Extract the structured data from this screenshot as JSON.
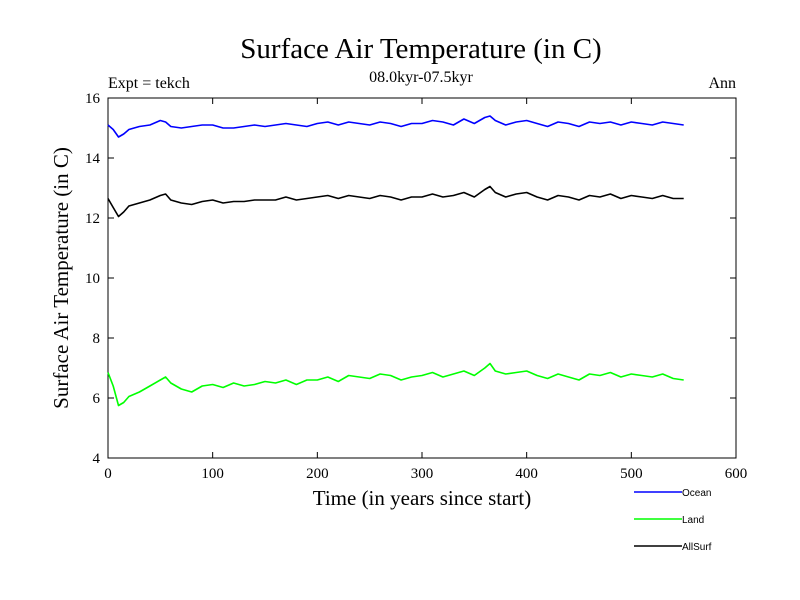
{
  "chart_data": {
    "type": "line",
    "title": "Surface Air Temperature (in C)",
    "subtitle": "08.0kyr-07.5kyr",
    "left_label": "Expt = tekch",
    "right_label": "Ann",
    "xlabel": "Time (in years since start)",
    "ylabel": "Surface Air Temperature (in C)",
    "xlim": [
      0,
      600
    ],
    "ylim": [
      4,
      16
    ],
    "xticks": [
      0,
      100,
      200,
      300,
      400,
      500,
      600
    ],
    "yticks": [
      4,
      6,
      8,
      10,
      12,
      14,
      16
    ],
    "legend_position": "bottom-right, below plot",
    "series": [
      {
        "name": "Ocean",
        "color": "#0000ff",
        "x": [
          0,
          5,
          10,
          15,
          20,
          30,
          40,
          50,
          55,
          60,
          70,
          80,
          90,
          100,
          110,
          120,
          130,
          140,
          150,
          160,
          170,
          180,
          190,
          200,
          210,
          220,
          230,
          240,
          250,
          260,
          270,
          280,
          290,
          300,
          310,
          320,
          330,
          340,
          350,
          360,
          365,
          370,
          380,
          390,
          400,
          410,
          420,
          430,
          440,
          450,
          460,
          470,
          480,
          490,
          500,
          510,
          520,
          530,
          540,
          550
        ],
        "values": [
          15.1,
          14.95,
          14.7,
          14.8,
          14.95,
          15.05,
          15.1,
          15.25,
          15.2,
          15.05,
          15.0,
          15.05,
          15.1,
          15.1,
          15.0,
          15.0,
          15.05,
          15.1,
          15.05,
          15.1,
          15.15,
          15.1,
          15.05,
          15.15,
          15.2,
          15.1,
          15.2,
          15.15,
          15.1,
          15.2,
          15.15,
          15.05,
          15.15,
          15.15,
          15.25,
          15.2,
          15.1,
          15.3,
          15.15,
          15.35,
          15.4,
          15.25,
          15.1,
          15.2,
          15.25,
          15.15,
          15.05,
          15.2,
          15.15,
          15.05,
          15.2,
          15.15,
          15.2,
          15.1,
          15.2,
          15.15,
          15.1,
          15.2,
          15.15,
          15.1
        ]
      },
      {
        "name": "Land",
        "color": "#00ff00",
        "x": [
          0,
          5,
          10,
          15,
          20,
          30,
          40,
          50,
          55,
          60,
          70,
          80,
          90,
          100,
          110,
          120,
          130,
          140,
          150,
          160,
          170,
          180,
          190,
          200,
          210,
          220,
          230,
          240,
          250,
          260,
          270,
          280,
          290,
          300,
          310,
          320,
          330,
          340,
          350,
          360,
          365,
          370,
          380,
          390,
          400,
          410,
          420,
          430,
          440,
          450,
          460,
          470,
          480,
          490,
          500,
          510,
          520,
          530,
          540,
          550
        ],
        "values": [
          6.85,
          6.4,
          5.75,
          5.85,
          6.05,
          6.2,
          6.4,
          6.6,
          6.7,
          6.5,
          6.3,
          6.2,
          6.4,
          6.45,
          6.35,
          6.5,
          6.4,
          6.45,
          6.55,
          6.5,
          6.6,
          6.45,
          6.6,
          6.6,
          6.7,
          6.55,
          6.75,
          6.7,
          6.65,
          6.8,
          6.75,
          6.6,
          6.7,
          6.75,
          6.85,
          6.7,
          6.8,
          6.9,
          6.75,
          7.0,
          7.15,
          6.9,
          6.8,
          6.85,
          6.9,
          6.75,
          6.65,
          6.8,
          6.7,
          6.6,
          6.8,
          6.75,
          6.85,
          6.7,
          6.8,
          6.75,
          6.7,
          6.8,
          6.65,
          6.6
        ]
      },
      {
        "name": "AllSurf",
        "color": "#000000",
        "x": [
          0,
          5,
          10,
          15,
          20,
          30,
          40,
          50,
          55,
          60,
          70,
          80,
          90,
          100,
          110,
          120,
          130,
          140,
          150,
          160,
          170,
          180,
          190,
          200,
          210,
          220,
          230,
          240,
          250,
          260,
          270,
          280,
          290,
          300,
          310,
          320,
          330,
          340,
          350,
          360,
          365,
          370,
          380,
          390,
          400,
          410,
          420,
          430,
          440,
          450,
          460,
          470,
          480,
          490,
          500,
          510,
          520,
          530,
          540,
          550
        ],
        "values": [
          12.65,
          12.35,
          12.05,
          12.2,
          12.4,
          12.5,
          12.6,
          12.75,
          12.8,
          12.6,
          12.5,
          12.45,
          12.55,
          12.6,
          12.5,
          12.55,
          12.55,
          12.6,
          12.6,
          12.6,
          12.7,
          12.6,
          12.65,
          12.7,
          12.75,
          12.65,
          12.75,
          12.7,
          12.65,
          12.75,
          12.7,
          12.6,
          12.7,
          12.7,
          12.8,
          12.7,
          12.75,
          12.85,
          12.7,
          12.95,
          13.05,
          12.85,
          12.7,
          12.8,
          12.85,
          12.7,
          12.6,
          12.75,
          12.7,
          12.6,
          12.75,
          12.7,
          12.8,
          12.65,
          12.75,
          12.7,
          12.65,
          12.75,
          12.65,
          12.65
        ]
      }
    ]
  }
}
